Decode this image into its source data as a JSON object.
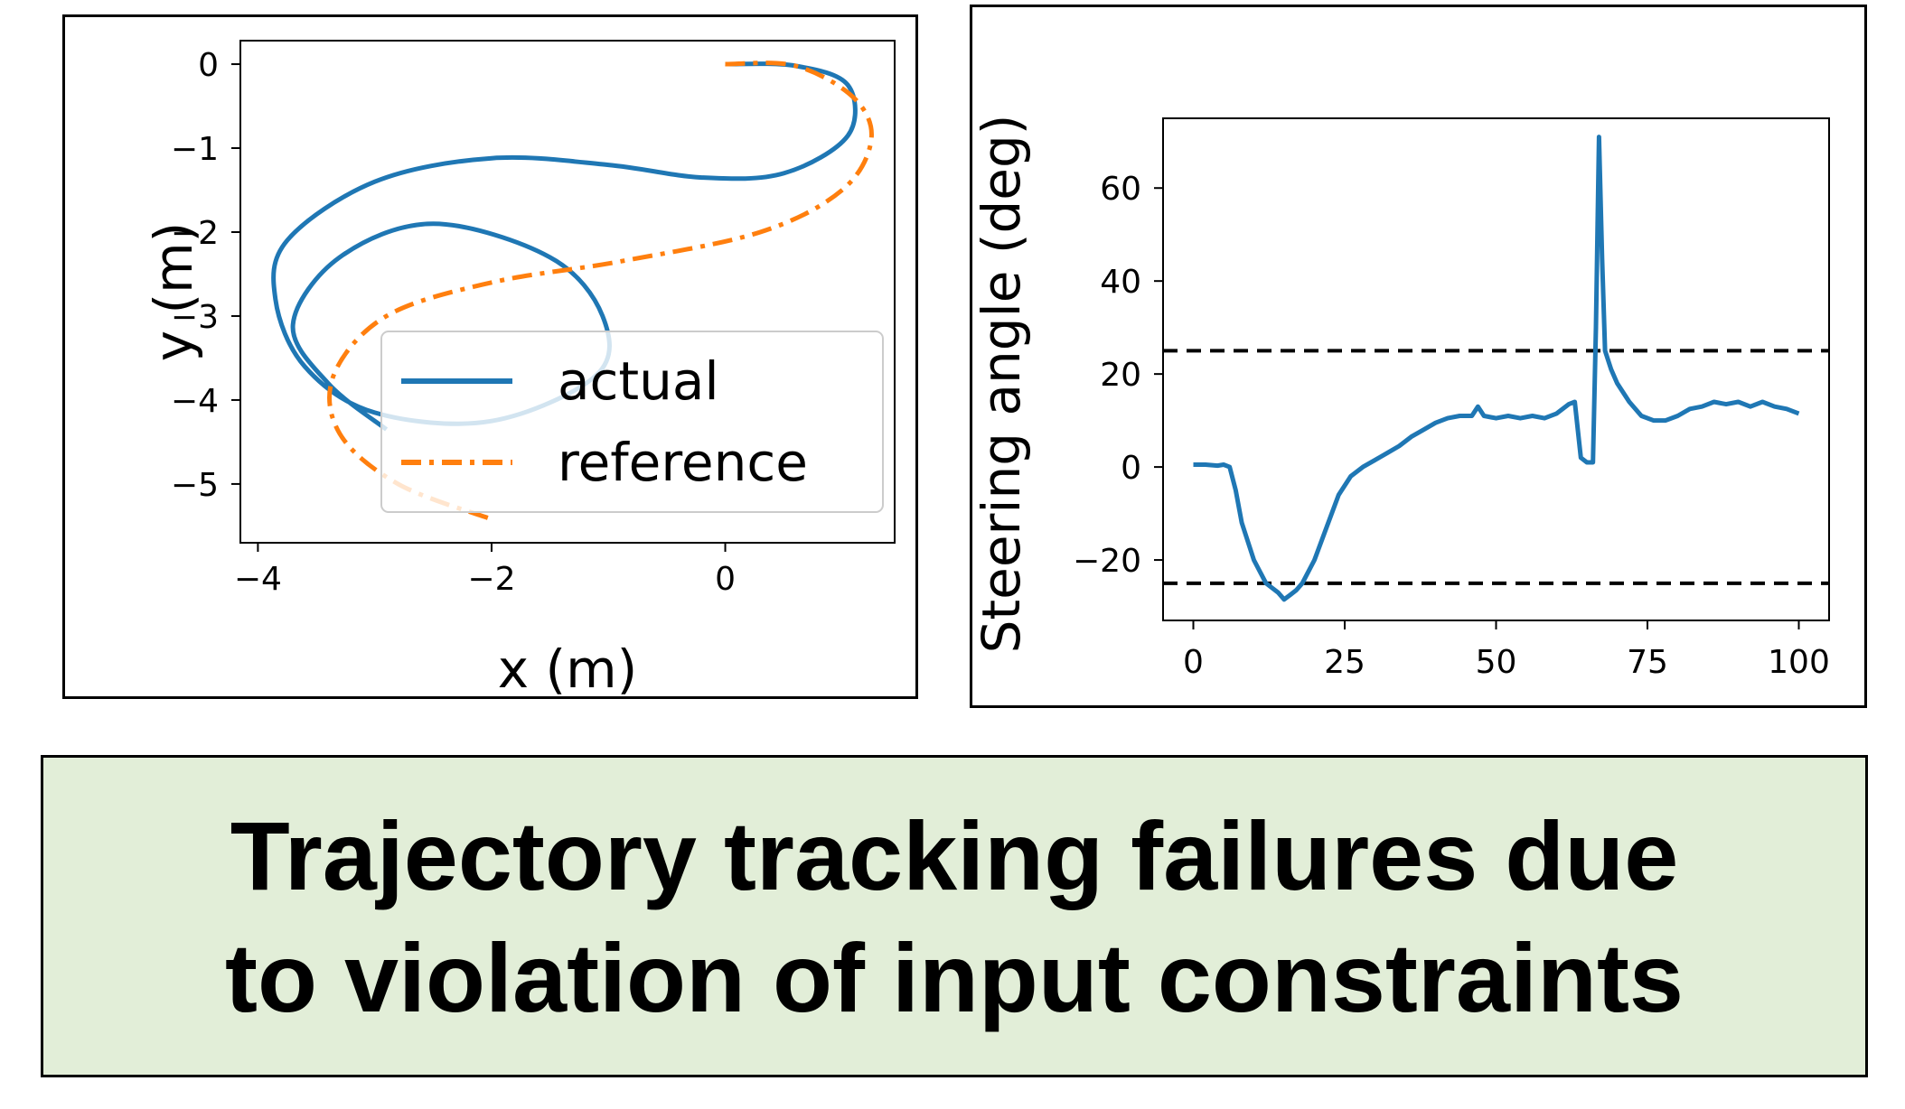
{
  "caption": {
    "line1": "Trajectory tracking failures due",
    "line2": "to violation of input constraints"
  },
  "chart_data": [
    {
      "type": "line",
      "title": "",
      "xlabel": "x (m)",
      "ylabel": "y (m)",
      "xlim": [
        -4.15,
        1.45
      ],
      "ylim": [
        -5.7,
        0.28
      ],
      "xticks": [
        -4,
        -2,
        0
      ],
      "xtick_labels": [
        "−4",
        "−2",
        "0"
      ],
      "yticks": [
        0,
        -1,
        -2,
        -3,
        -4,
        -5
      ],
      "ytick_labels": [
        "0",
        "−1",
        "−2",
        "−3",
        "−4",
        "−5"
      ],
      "grid": false,
      "legend_position": "lower-right",
      "colors": {
        "actual": "#1f77b4",
        "reference": "#ff7f0e"
      },
      "series": [
        {
          "name": "actual",
          "style": "solid",
          "points": [
            [
              0,
              0
            ],
            [
              0.6,
              -0.02
            ],
            [
              1.05,
              -0.25
            ],
            [
              1.05,
              -0.85
            ],
            [
              0.5,
              -1.3
            ],
            [
              -0.2,
              -1.35
            ],
            [
              -1.0,
              -1.2
            ],
            [
              -2.0,
              -1.12
            ],
            [
              -3.0,
              -1.4
            ],
            [
              -3.75,
              -2.1
            ],
            [
              -3.85,
              -2.8
            ],
            [
              -3.6,
              -3.6
            ],
            [
              -3.0,
              -4.15
            ],
            [
              -2.0,
              -4.25
            ],
            [
              -1.1,
              -3.7
            ],
            [
              -1.05,
              -3.0
            ],
            [
              -1.5,
              -2.3
            ],
            [
              -2.5,
              -1.9
            ],
            [
              -3.3,
              -2.3
            ],
            [
              -3.7,
              -3.1
            ],
            [
              -3.4,
              -3.8
            ],
            [
              -2.9,
              -4.35
            ]
          ]
        },
        {
          "name": "reference",
          "style": "dashdot",
          "points": [
            [
              0,
              0
            ],
            [
              0.6,
              -0.02
            ],
            [
              1.1,
              -0.4
            ],
            [
              1.25,
              -0.9
            ],
            [
              1.0,
              -1.5
            ],
            [
              0.3,
              -2.0
            ],
            [
              -0.9,
              -2.35
            ],
            [
              -2.0,
              -2.6
            ],
            [
              -2.9,
              -3.0
            ],
            [
              -3.35,
              -3.7
            ],
            [
              -3.3,
              -4.4
            ],
            [
              -2.8,
              -5.0
            ],
            [
              -2.0,
              -5.42
            ]
          ]
        }
      ]
    },
    {
      "type": "line",
      "title": "",
      "xlabel": "",
      "ylabel": "Steering angle (deg)",
      "xlim": [
        -5,
        105
      ],
      "ylim": [
        -33,
        75
      ],
      "xticks": [
        0,
        25,
        50,
        75,
        100
      ],
      "xtick_labels": [
        "0",
        "25",
        "50",
        "75",
        "100"
      ],
      "yticks": [
        60,
        40,
        20,
        0,
        -20
      ],
      "ytick_labels": [
        "60",
        "40",
        "20",
        "0",
        "−20"
      ],
      "grid": false,
      "reference_lines": [
        25,
        -25
      ],
      "colors": {
        "series": "#1f77b4",
        "limits": "#000000"
      },
      "series": [
        {
          "points": [
            [
              0,
              0.5
            ],
            [
              2,
              0.5
            ],
            [
              4,
              0.3
            ],
            [
              5,
              0.5
            ],
            [
              6,
              0
            ],
            [
              7,
              -5
            ],
            [
              8,
              -12
            ],
            [
              10,
              -20
            ],
            [
              12,
              -25
            ],
            [
              14,
              -27
            ],
            [
              15,
              -28.5
            ],
            [
              16,
              -27.5
            ],
            [
              17,
              -26.5
            ],
            [
              18,
              -25
            ],
            [
              20,
              -20
            ],
            [
              22,
              -13
            ],
            [
              24,
              -6
            ],
            [
              26,
              -2
            ],
            [
              28,
              0
            ],
            [
              30,
              1.5
            ],
            [
              32,
              3
            ],
            [
              34,
              4.5
            ],
            [
              36,
              6.5
            ],
            [
              38,
              8
            ],
            [
              40,
              9.5
            ],
            [
              42,
              10.5
            ],
            [
              44,
              11
            ],
            [
              46,
              11
            ],
            [
              47,
              13
            ],
            [
              48,
              11
            ],
            [
              50,
              10.5
            ],
            [
              52,
              11
            ],
            [
              54,
              10.5
            ],
            [
              56,
              11
            ],
            [
              58,
              10.5
            ],
            [
              60,
              11.5
            ],
            [
              62,
              13.5
            ],
            [
              63,
              14
            ],
            [
              64,
              2
            ],
            [
              65,
              1
            ],
            [
              66,
              1
            ],
            [
              66.5,
              30
            ],
            [
              67,
              71
            ],
            [
              67.5,
              45
            ],
            [
              68,
              25
            ],
            [
              69,
              21
            ],
            [
              70,
              18
            ],
            [
              72,
              14
            ],
            [
              74,
              11
            ],
            [
              76,
              10
            ],
            [
              78,
              10
            ],
            [
              80,
              11
            ],
            [
              82,
              12.5
            ],
            [
              84,
              13
            ],
            [
              86,
              14
            ],
            [
              88,
              13.5
            ],
            [
              90,
              14
            ],
            [
              92,
              13
            ],
            [
              94,
              14
            ],
            [
              96,
              13
            ],
            [
              98,
              12.5
            ],
            [
              100,
              11.5
            ]
          ]
        }
      ]
    }
  ]
}
